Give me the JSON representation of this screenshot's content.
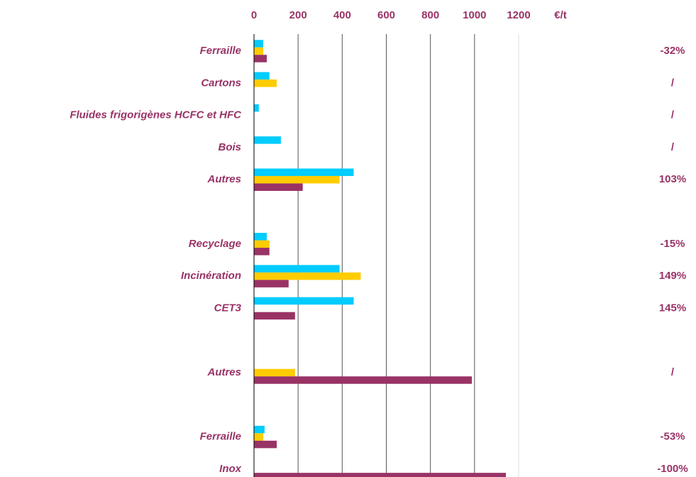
{
  "chart_data": {
    "type": "hbar",
    "x_unit": "€/t",
    "categories": [
      "Ferraille",
      "Cartons",
      "Fluides frigorigènes HCFC et HFC",
      "Bois",
      "Autres",
      null,
      "Recyclage",
      "Incinération",
      "CET3",
      null,
      "Autres",
      null,
      "Ferraille",
      "Inox"
    ],
    "series": [
      {
        "color": "#00ccff",
        "values": [
          42,
          70,
          22,
          122,
          452,
          null,
          58,
          388,
          452,
          null,
          null,
          null,
          48,
          null
        ]
      },
      {
        "color": "#ffcc00",
        "values": [
          42,
          103,
          null,
          null,
          388,
          null,
          70,
          484,
          null,
          null,
          186,
          null,
          42,
          null
        ]
      },
      {
        "color": "#993366",
        "values": [
          58,
          null,
          null,
          null,
          221,
          null,
          70,
          157,
          186,
          null,
          988,
          null,
          103,
          1142
        ]
      }
    ],
    "annotations": [
      "-32%",
      "/",
      "/",
      "/",
      "103%",
      null,
      "-15%",
      "149%",
      "145%",
      null,
      "/",
      null,
      "-53%",
      "-100%"
    ],
    "xlim": [
      0,
      1200
    ],
    "xticks": [
      0,
      200,
      400,
      600,
      800,
      1000,
      1200
    ],
    "grid": true
  }
}
